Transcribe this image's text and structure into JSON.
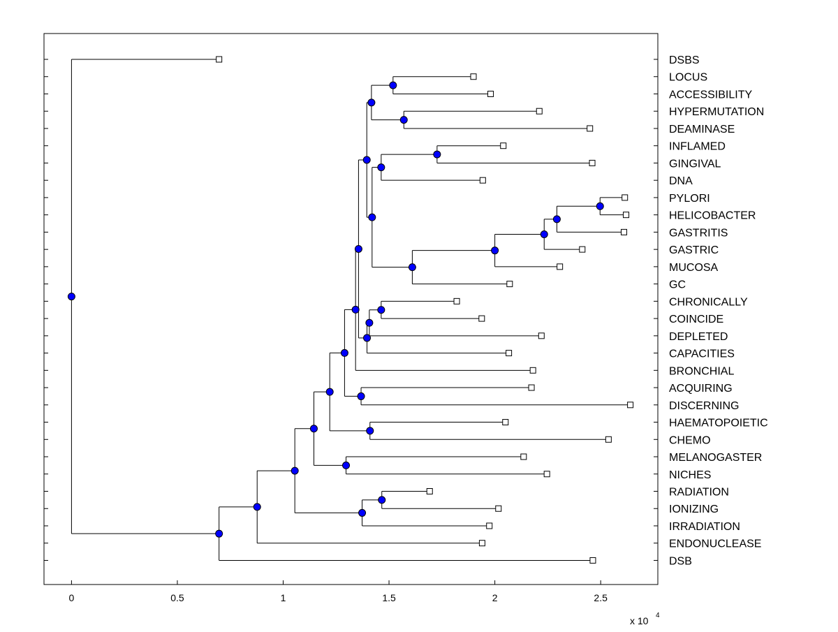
{
  "chart_data": {
    "type": "dendrogram",
    "x_tick_labels": [
      "0",
      "0.5",
      "1",
      "1.5",
      "2",
      "2.5"
    ],
    "x_ticks": [
      0,
      5000,
      10000,
      15000,
      20000,
      25000
    ],
    "xlim": [
      -1300,
      27700
    ],
    "x_scale_label": "x 10",
    "x_scale_exponent": "4",
    "node_color": "#0000ff",
    "leaves": [
      {
        "label": "DSBS",
        "value": 6970
      },
      {
        "label": "LOCUS",
        "value": 18990
      },
      {
        "label": "ACCESSIBILITY",
        "value": 19800
      },
      {
        "label": "HYPERMUTATION",
        "value": 22100
      },
      {
        "label": "DEAMINASE",
        "value": 24490
      },
      {
        "label": "INFLAMED",
        "value": 20400
      },
      {
        "label": "GINGIVAL",
        "value": 24600
      },
      {
        "label": "DNA",
        "value": 19430
      },
      {
        "label": "PYLORI",
        "value": 26140
      },
      {
        "label": "HELICOBACTER",
        "value": 26200
      },
      {
        "label": "GASTRITIS",
        "value": 26100
      },
      {
        "label": "GASTRIC",
        "value": 24130
      },
      {
        "label": "MUCOSA",
        "value": 23070
      },
      {
        "label": "GC",
        "value": 20700
      },
      {
        "label": "CHRONICALLY",
        "value": 18200
      },
      {
        "label": "COINCIDE",
        "value": 19380
      },
      {
        "label": "DEPLETED",
        "value": 22200
      },
      {
        "label": "CAPACITIES",
        "value": 20660
      },
      {
        "label": "BRONCHIAL",
        "value": 21800
      },
      {
        "label": "ACQUIRING",
        "value": 21730
      },
      {
        "label": "DISCERNING",
        "value": 26400
      },
      {
        "label": "HAEMATOPOIETIC",
        "value": 20500
      },
      {
        "label": "CHEMO",
        "value": 25370
      },
      {
        "label": "MELANOGASTER",
        "value": 21360
      },
      {
        "label": "NICHES",
        "value": 22460
      },
      {
        "label": "RADIATION",
        "value": 16920
      },
      {
        "label": "IONIZING",
        "value": 20170
      },
      {
        "label": "IRRADIATION",
        "value": 19740
      },
      {
        "label": "ENDONUCLEASE",
        "value": 19400
      },
      {
        "label": "DSB",
        "value": 24630
      }
    ],
    "nodes": [
      {
        "id": "n_locus_acc",
        "value": 15190,
        "children": [
          1,
          2
        ]
      },
      {
        "id": "n_hyper_deam",
        "value": 15700,
        "children": [
          3,
          4
        ]
      },
      {
        "id": "n_A",
        "value": 14170,
        "children": [
          "n_locus_acc",
          "n_hyper_deam"
        ]
      },
      {
        "id": "n_infl_ging",
        "value": 17270,
        "children": [
          5,
          6
        ]
      },
      {
        "id": "n_infl_dna",
        "value": 14630,
        "children": [
          "n_infl_ging",
          7
        ]
      },
      {
        "id": "n_pyl_hel",
        "value": 24970,
        "children": [
          8,
          9
        ]
      },
      {
        "id": "n_gastritis",
        "value": 22930,
        "children": [
          "n_pyl_hel",
          10
        ]
      },
      {
        "id": "n_gastric",
        "value": 22330,
        "children": [
          "n_gastritis",
          11
        ]
      },
      {
        "id": "n_mucosa",
        "value": 20000,
        "children": [
          "n_gastric",
          12
        ]
      },
      {
        "id": "n_gc",
        "value": 16100,
        "children": [
          "n_mucosa",
          13
        ]
      },
      {
        "id": "n_dna_gastric",
        "value": 14200,
        "children": [
          "n_infl_dna",
          "n_gc"
        ]
      },
      {
        "id": "n_B",
        "value": 13950,
        "children": [
          "n_A",
          "n_dna_gastric"
        ]
      },
      {
        "id": "n_chron_coin",
        "value": 14630,
        "children": [
          14,
          15
        ]
      },
      {
        "id": "n_depleted",
        "value": 14070,
        "children": [
          "n_chron_coin",
          16
        ]
      },
      {
        "id": "n_capacities",
        "value": 13960,
        "children": [
          "n_depleted",
          17
        ]
      },
      {
        "id": "n_C",
        "value": 13560,
        "children": [
          "n_B",
          "n_capacities"
        ]
      },
      {
        "id": "n_bronchial",
        "value": 13420,
        "children": [
          "n_C",
          18
        ]
      },
      {
        "id": "n_acq_disc",
        "value": 13680,
        "children": [
          19,
          20
        ]
      },
      {
        "id": "n_D",
        "value": 12900,
        "children": [
          "n_bronchial",
          "n_acq_disc"
        ]
      },
      {
        "id": "n_haem_chemo",
        "value": 14100,
        "children": [
          21,
          22
        ]
      },
      {
        "id": "n_E",
        "value": 12200,
        "children": [
          "n_D",
          "n_haem_chemo"
        ]
      },
      {
        "id": "n_mel_nich",
        "value": 12970,
        "children": [
          23,
          24
        ]
      },
      {
        "id": "n_F",
        "value": 11450,
        "children": [
          "n_E",
          "n_mel_nich"
        ]
      },
      {
        "id": "n_rad_ion",
        "value": 14660,
        "children": [
          25,
          26
        ]
      },
      {
        "id": "n_irrad",
        "value": 13730,
        "children": [
          "n_rad_ion",
          27
        ]
      },
      {
        "id": "n_G",
        "value": 10550,
        "children": [
          "n_F",
          "n_irrad"
        ]
      },
      {
        "id": "n_endo",
        "value": 8770,
        "children": [
          "n_G",
          28
        ]
      },
      {
        "id": "n_dsb",
        "value": 6970,
        "children": [
          "n_endo",
          29
        ]
      },
      {
        "id": "n_root",
        "value": 0,
        "children": [
          0,
          "n_dsb"
        ]
      }
    ]
  }
}
